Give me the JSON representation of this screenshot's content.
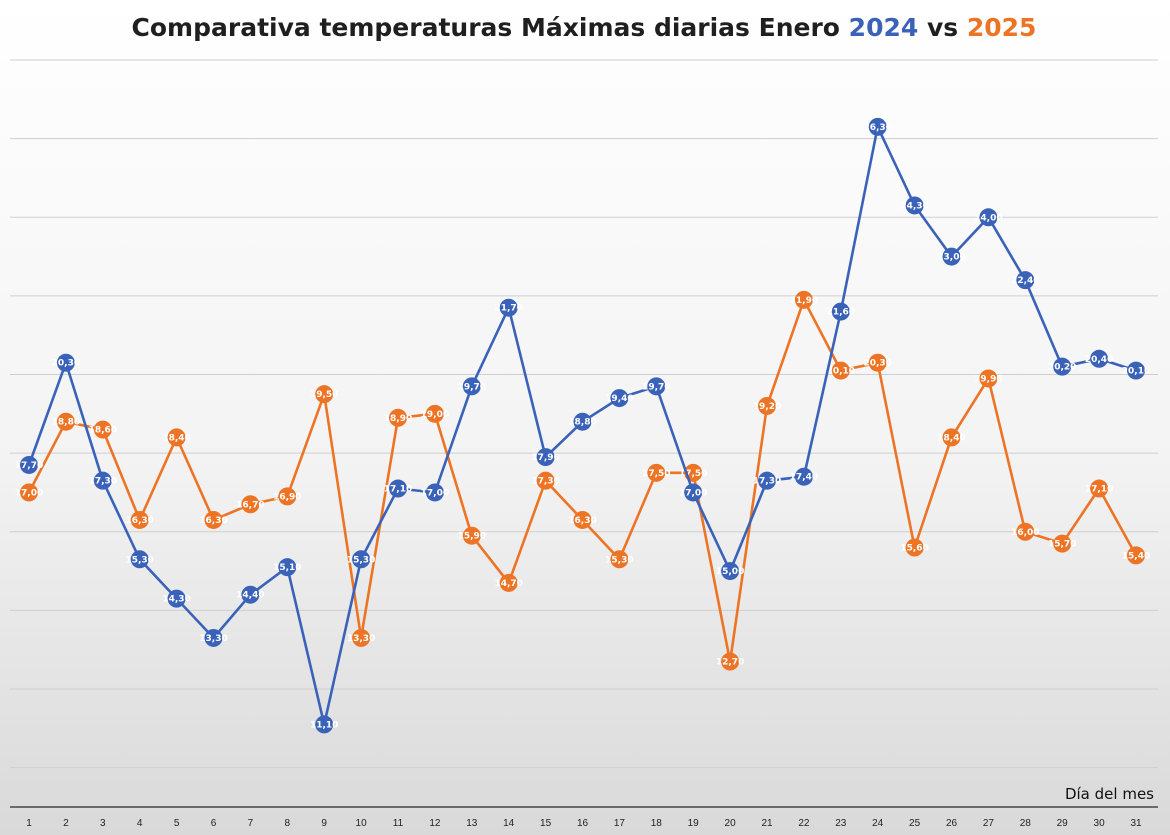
{
  "chart_data": {
    "type": "line",
    "title": {
      "prefix": "Comparativa temperaturas Máximas diarias Enero ",
      "year1": "2024",
      "sep": " vs ",
      "year2": "2025"
    },
    "xlabel": "Día del mes",
    "ylabel": "",
    "categories": [
      "1",
      "2",
      "3",
      "4",
      "5",
      "6",
      "7",
      "8",
      "9",
      "10",
      "11",
      "12",
      "13",
      "14",
      "15",
      "16",
      "17",
      "18",
      "19",
      "20",
      "21",
      "22",
      "23",
      "24",
      "25",
      "26",
      "27",
      "28",
      "29",
      "30",
      "31"
    ],
    "ylim": [
      9,
      28
    ],
    "gridlines": [
      10,
      12,
      14,
      16,
      18,
      20,
      22,
      24,
      26,
      28
    ],
    "grid": true,
    "legend": "none",
    "series": [
      {
        "name": "2024",
        "color": "#3a62b8",
        "values": [
          17.7,
          20.3,
          17.3,
          15.3,
          14.3,
          13.3,
          14.4,
          15.1,
          11.1,
          15.3,
          17.1,
          17.0,
          19.7,
          21.7,
          17.9,
          18.8,
          19.4,
          19.7,
          17.0,
          15.0,
          17.3,
          17.4,
          21.6,
          26.3,
          24.3,
          23.0,
          24.0,
          22.4,
          20.2,
          20.4,
          20.1
        ],
        "labels": [
          "17,70",
          "20,30",
          "17,30",
          "15,30",
          "14,30",
          "13,30",
          "14,40",
          "15,10",
          "11,10",
          "15,30",
          "17,10",
          "17,00",
          "19,70",
          "21,70",
          "17,90",
          "18,80",
          "19,40",
          "19,70",
          "17,00",
          "15,00",
          "17,30",
          "17,40",
          "21,60",
          "26,30",
          "24,30",
          "23,00",
          "24,00",
          "22,40",
          "20,20",
          "20,40",
          "20,10"
        ]
      },
      {
        "name": "2025",
        "color": "#ec7424",
        "values": [
          17.0,
          18.8,
          18.6,
          16.3,
          18.4,
          16.3,
          16.7,
          16.9,
          19.5,
          13.3,
          18.9,
          19.0,
          15.9,
          14.7,
          17.3,
          16.3,
          15.3,
          17.5,
          17.5,
          12.7,
          19.2,
          21.9,
          20.1,
          20.3,
          15.6,
          18.4,
          19.9,
          16.0,
          15.7,
          17.1,
          15.4
        ],
        "labels": [
          "17,00",
          "18,80",
          "18,60",
          "16,30",
          "18,40",
          "16,30",
          "16,70",
          "16,90",
          "19,50",
          "13,30",
          "18,90",
          "19,00",
          "15,90",
          "14,70",
          "17,30",
          "16,30",
          "15,30",
          "17,50",
          "17,50",
          "12,70",
          "19,20",
          "21,90",
          "20,10",
          "20,30",
          "15,60",
          "18,40",
          "19,90",
          "16,00",
          "15,70",
          "17,10",
          "15,40"
        ]
      }
    ]
  }
}
